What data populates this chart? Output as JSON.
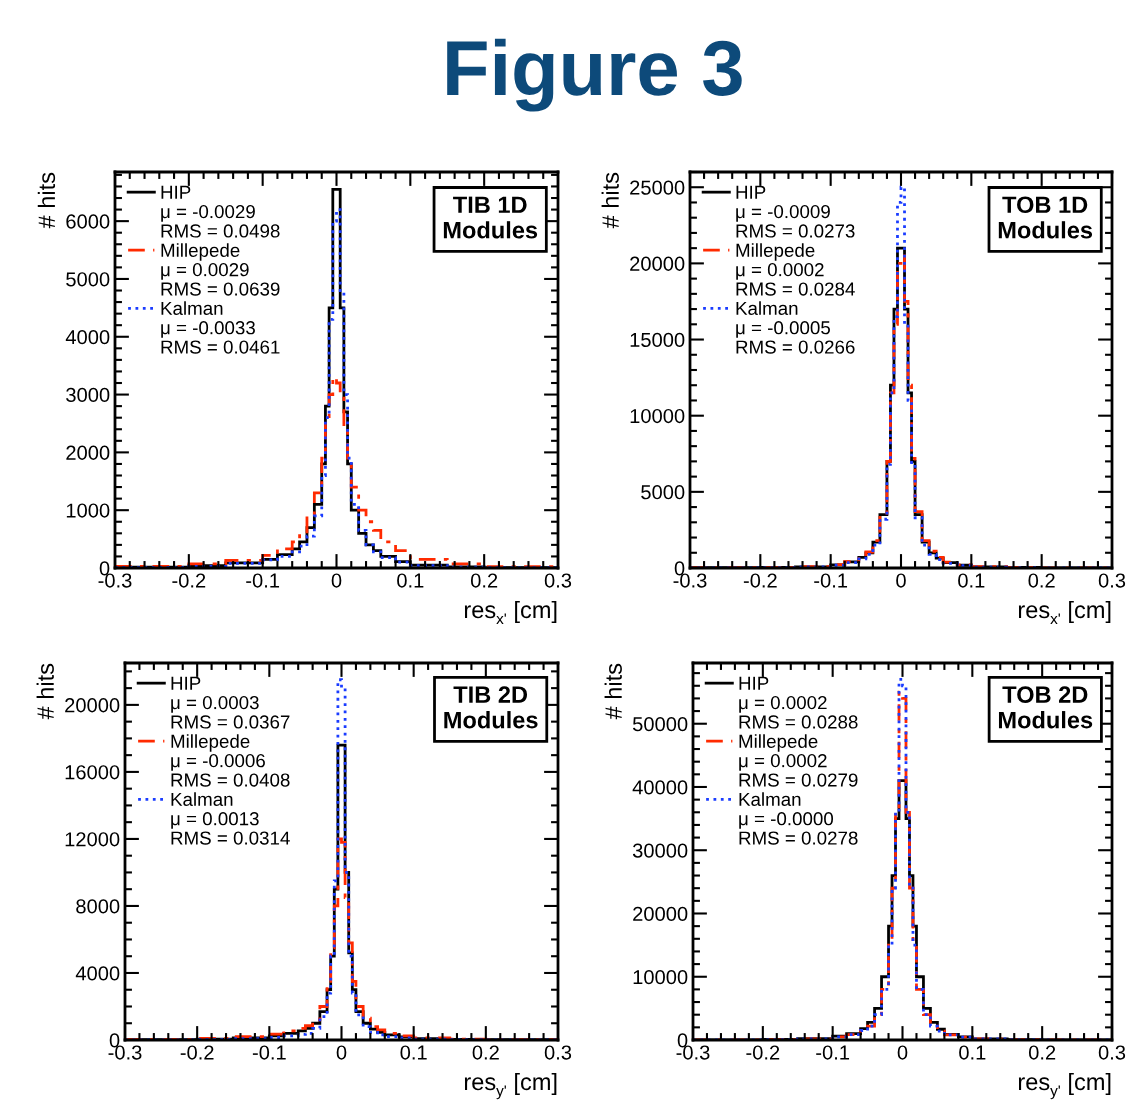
{
  "chart_data": [
    {
      "type": "histogram",
      "title": "Figure 3",
      "xlabel": "res$_{x'}$ [cm]",
      "ylabel": "# hits",
      "xlim": [
        -0.3,
        0.3
      ],
      "xticks": [
        -0.3,
        -0.2,
        -0.1,
        0,
        0.1,
        0.2,
        0.3
      ],
      "ylim": [
        0,
        6850
      ],
      "yticks": [
        0,
        1000,
        2000,
        3000,
        4000,
        5000,
        6000
      ],
      "legend": "top left",
      "grid": false,
      "bins": [
        -0.3,
        -0.2,
        -0.15,
        -0.1,
        -0.08,
        -0.06,
        -0.05,
        -0.04,
        -0.03,
        -0.02,
        -0.015,
        -0.01,
        -0.005,
        0,
        0.005,
        0.01,
        0.015,
        0.02,
        0.03,
        0.04,
        0.05,
        0.06,
        0.08,
        0.1,
        0.15,
        0.2,
        0.3
      ],
      "annotations": [
        "TIB 1D\nModules",
        "μ = -0.0029",
        "RMS = 0.0498",
        "μ = 0.0029",
        "RMS = 0.0639",
        "μ = -0.0033",
        "RMS = 0.0461"
      ],
      "series": [
        {
          "name": "HIP",
          "color": "#000000",
          "line_style": "solid",
          "values": [
            15,
            40,
            90,
            150,
            230,
            330,
            450,
            700,
            1100,
            1800,
            2800,
            4500,
            6550,
            6550,
            4500,
            2700,
            1800,
            1000,
            600,
            400,
            300,
            200,
            110,
            50,
            20,
            8
          ]
        },
        {
          "name": "Millepede",
          "color": "#ff2a00",
          "line_style": "dashed",
          "values": [
            30,
            70,
            130,
            220,
            330,
            450,
            600,
            900,
            1300,
            1900,
            2500,
            3000,
            3300,
            3200,
            3000,
            2400,
            1900,
            1400,
            1000,
            800,
            650,
            450,
            300,
            150,
            70,
            25
          ]
        },
        {
          "name": "Kalman",
          "color": "#1a3cff",
          "line_style": "dotted",
          "values": [
            10,
            30,
            80,
            140,
            200,
            280,
            380,
            550,
            900,
            1600,
            2600,
            4300,
            6000,
            6200,
            4800,
            3000,
            1900,
            1100,
            650,
            400,
            280,
            180,
            100,
            40,
            15,
            6
          ]
        }
      ]
    },
    {
      "type": "histogram",
      "xlabel": "res$_{x'}$ [cm]",
      "ylabel": "# hits",
      "xlim": [
        -0.3,
        0.3
      ],
      "xticks": [
        -0.3,
        -0.2,
        -0.1,
        0,
        0.1,
        0.2,
        0.3
      ],
      "ylim": [
        0,
        26000
      ],
      "yticks": [
        0,
        5000,
        10000,
        15000,
        20000,
        25000
      ],
      "legend": "top left",
      "grid": false,
      "bins": [
        -0.3,
        -0.2,
        -0.15,
        -0.1,
        -0.08,
        -0.06,
        -0.05,
        -0.04,
        -0.03,
        -0.02,
        -0.015,
        -0.01,
        -0.005,
        0,
        0.005,
        0.01,
        0.015,
        0.02,
        0.03,
        0.04,
        0.05,
        0.06,
        0.08,
        0.1,
        0.15,
        0.2,
        0.3
      ],
      "annotations": [
        "TOB 1D\nModules",
        "μ = -0.0009",
        "RMS = 0.0273",
        "μ = 0.0002",
        "RMS = 0.0284",
        "μ = -0.0005",
        "RMS = 0.0266"
      ],
      "series": [
        {
          "name": "HIP",
          "color": "#000000",
          "line_style": "solid",
          "values": [
            20,
            40,
            80,
            200,
            400,
            700,
            1000,
            1700,
            3500,
            7000,
            12000,
            17000,
            21000,
            21000,
            17000,
            11500,
            7000,
            3500,
            1700,
            1000,
            650,
            350,
            180,
            80,
            35,
            15
          ]
        },
        {
          "name": "Millepede",
          "color": "#ff2a00",
          "line_style": "dashed",
          "values": [
            20,
            40,
            90,
            220,
            420,
            750,
            1050,
            1800,
            3600,
            7000,
            11500,
            16000,
            20000,
            20500,
            17500,
            12000,
            7200,
            3700,
            1800,
            1100,
            700,
            380,
            200,
            90,
            40,
            15
          ]
        },
        {
          "name": "Kalman",
          "color": "#1a3cff",
          "line_style": "dotted",
          "values": [
            15,
            30,
            70,
            180,
            350,
            600,
            900,
            1500,
            3200,
            6800,
            11500,
            16500,
            24000,
            25000,
            16000,
            11000,
            6800,
            3300,
            1500,
            900,
            550,
            300,
            150,
            60,
            25,
            10
          ]
        }
      ]
    },
    {
      "type": "histogram",
      "xlabel": "res$_{y'}$ [cm]",
      "ylabel": "# hits",
      "xlim": [
        -0.3,
        0.3
      ],
      "xticks": [
        -0.3,
        -0.2,
        -0.1,
        0,
        0.1,
        0.2,
        0.3
      ],
      "ylim": [
        0,
        22500
      ],
      "yticks": [
        0,
        4000,
        8000,
        12000,
        16000,
        20000
      ],
      "legend": "top left",
      "grid": false,
      "bins": [
        -0.3,
        -0.2,
        -0.15,
        -0.1,
        -0.08,
        -0.06,
        -0.05,
        -0.04,
        -0.03,
        -0.02,
        -0.015,
        -0.01,
        -0.005,
        0,
        0.005,
        0.01,
        0.015,
        0.02,
        0.03,
        0.04,
        0.05,
        0.06,
        0.08,
        0.1,
        0.15,
        0.2,
        0.3
      ],
      "annotations": [
        "TIB 2D\nModules",
        "μ = 0.0003",
        "RMS = 0.0367",
        "μ = -0.0006",
        "RMS = 0.0408",
        "μ = 0.0013",
        "RMS = 0.0314"
      ],
      "series": [
        {
          "name": "HIP",
          "color": "#000000",
          "line_style": "solid",
          "values": [
            20,
            50,
            120,
            250,
            400,
            550,
            700,
            1000,
            1700,
            3000,
            5000,
            9000,
            17600,
            17600,
            10000,
            5200,
            3000,
            1700,
            1000,
            650,
            450,
            300,
            180,
            80,
            35,
            15
          ]
        },
        {
          "name": "Millepede",
          "color": "#ff2a00",
          "line_style": "dashed",
          "values": [
            40,
            90,
            200,
            350,
            550,
            700,
            850,
            1200,
            2000,
            3500,
            5500,
            8000,
            12000,
            11800,
            8500,
            5800,
            3500,
            2000,
            1300,
            800,
            600,
            400,
            250,
            120,
            50,
            20
          ]
        },
        {
          "name": "Kalman",
          "color": "#1a3cff",
          "line_style": "dotted",
          "values": [
            10,
            30,
            80,
            150,
            250,
            330,
            400,
            700,
            1400,
            2800,
            5000,
            9500,
            21500,
            21000,
            10000,
            5000,
            2800,
            1500,
            800,
            450,
            300,
            200,
            120,
            50,
            20,
            8
          ]
        }
      ]
    },
    {
      "type": "histogram",
      "xlabel": "res$_{y'}$ [cm]",
      "ylabel": "# hits",
      "xlim": [
        -0.3,
        0.3
      ],
      "xticks": [
        -0.3,
        -0.2,
        -0.1,
        0,
        0.1,
        0.2,
        0.3
      ],
      "ylim": [
        0,
        59600
      ],
      "yticks": [
        0,
        10000,
        20000,
        30000,
        40000,
        50000
      ],
      "legend": "top left",
      "grid": false,
      "bins": [
        -0.3,
        -0.2,
        -0.15,
        -0.1,
        -0.08,
        -0.06,
        -0.05,
        -0.04,
        -0.03,
        -0.02,
        -0.015,
        -0.01,
        -0.005,
        0,
        0.005,
        0.01,
        0.015,
        0.02,
        0.03,
        0.04,
        0.05,
        0.06,
        0.08,
        0.1,
        0.15,
        0.2,
        0.3
      ],
      "annotations": [
        "TOB 2D\nModules",
        "μ = 0.0002",
        "RMS = 0.0288",
        "μ = 0.0002",
        "RMS = 0.0279",
        "μ = -0.0000",
        "RMS = 0.0278"
      ],
      "series": [
        {
          "name": "HIP",
          "color": "#000000",
          "line_style": "solid",
          "values": [
            30,
            80,
            200,
            600,
            1000,
            1800,
            2800,
            5000,
            10000,
            18000,
            26000,
            35000,
            41000,
            41000,
            35000,
            26000,
            18000,
            10000,
            5000,
            2800,
            1700,
            900,
            500,
            180,
            70,
            25
          ]
        },
        {
          "name": "Millepede",
          "color": "#ff2a00",
          "line_style": "dashed",
          "values": [
            25,
            70,
            180,
            500,
            850,
            1500,
            2200,
            4000,
            8000,
            15000,
            24000,
            36000,
            55000,
            54000,
            36000,
            24000,
            15000,
            8000,
            4000,
            2200,
            1400,
            800,
            450,
            160,
            60,
            20
          ]
        },
        {
          "name": "Kalman",
          "color": "#1a3cff",
          "line_style": "dotted",
          "values": [
            25,
            70,
            180,
            500,
            850,
            1500,
            2200,
            4000,
            8000,
            15000,
            24000,
            36000,
            57000,
            56000,
            36000,
            24000,
            15000,
            8000,
            4000,
            2200,
            1400,
            800,
            450,
            160,
            60,
            20
          ]
        }
      ]
    }
  ]
}
